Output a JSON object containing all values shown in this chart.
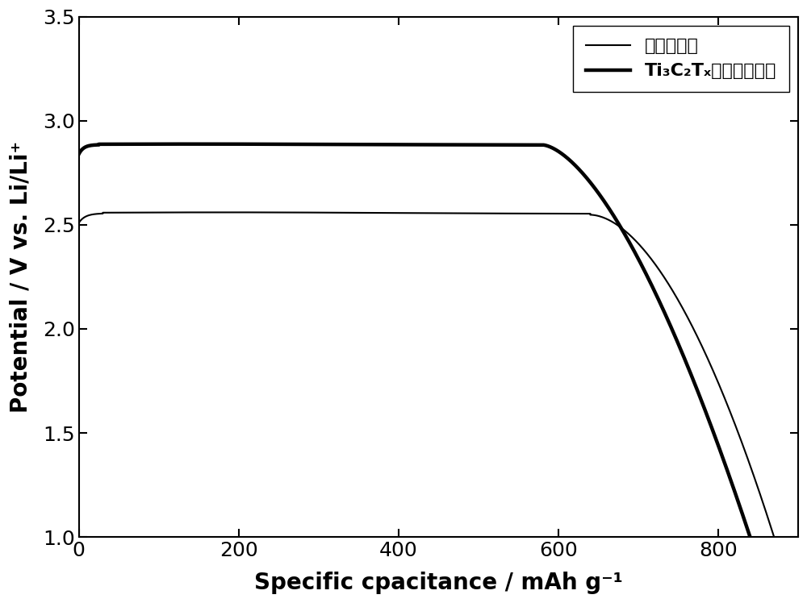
{
  "title": "",
  "xlabel": "Specific cpacitance / mAh g⁻¹",
  "ylabel": "Potential / V vs. Li/Li⁺",
  "xlim": [
    0,
    900
  ],
  "ylim": [
    1.0,
    3.5
  ],
  "xticks": [
    0,
    200,
    400,
    600,
    800
  ],
  "yticks": [
    1.0,
    1.5,
    2.0,
    2.5,
    3.0,
    3.5
  ],
  "legend_thin_label": "原始氟化碳",
  "legend_thick_label": "Ti₃C₂Tₓ修饰的氟化碳",
  "background_color": "#ffffff",
  "axis_color": "#000000",
  "tick_fontsize": 18,
  "label_fontsize": 20,
  "legend_fontsize": 16,
  "thin_lw": 1.5,
  "thick_lw": 3.2
}
